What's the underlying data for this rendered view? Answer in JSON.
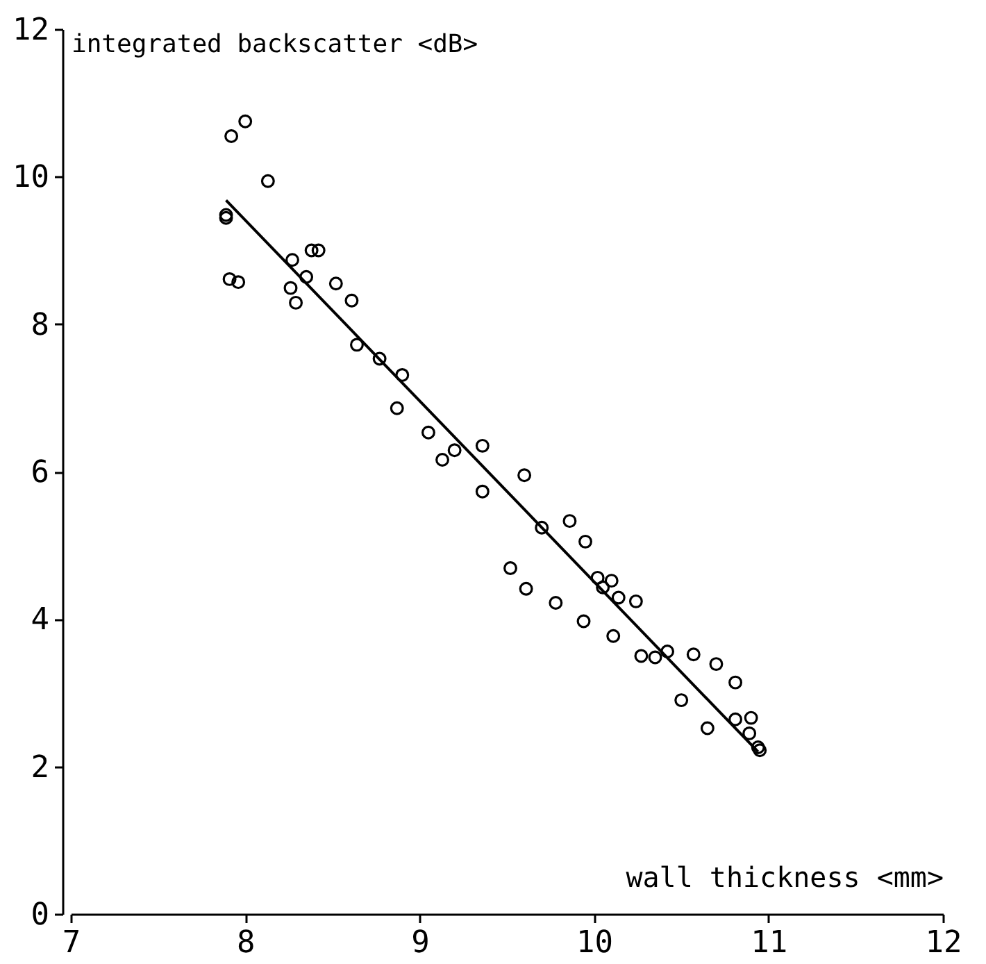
{
  "chart_data": {
    "type": "scatter",
    "xlabel": "wall thickness <mm>",
    "ylabel": "integrated backscatter <dB>",
    "xlim": [
      7,
      12
    ],
    "xticks": [
      7,
      8,
      9,
      10,
      11,
      12
    ],
    "ylim": [
      0,
      12
    ],
    "yticks": [
      0,
      2,
      4,
      6,
      8,
      10,
      12
    ],
    "grid": false,
    "marker": "circle",
    "series": [
      {
        "color": "#000000",
        "x": [
          7.89,
          7.89,
          7.92,
          8.0,
          8.13,
          7.91,
          7.96,
          8.27,
          8.26,
          8.29,
          8.35,
          8.38,
          8.42,
          8.52,
          8.61,
          8.64,
          8.77,
          8.9,
          8.87,
          9.05,
          9.13,
          9.2,
          9.36,
          9.36,
          9.6,
          9.7,
          9.86,
          9.95,
          9.52,
          9.61,
          9.78,
          9.94,
          10.02,
          10.1,
          10.05,
          10.14,
          10.24,
          10.11,
          10.27,
          10.35,
          10.42,
          10.57,
          10.7,
          10.5,
          10.65,
          10.81,
          10.81,
          10.9,
          10.89,
          10.94,
          10.95
        ],
        "values": [
          9.48,
          9.44,
          10.55,
          10.75,
          9.94,
          8.61,
          8.57,
          8.87,
          8.49,
          8.29,
          8.64,
          9.0,
          9.0,
          8.55,
          8.32,
          7.72,
          7.53,
          7.31,
          6.86,
          6.53,
          6.16,
          6.29,
          6.35,
          5.73,
          5.95,
          5.24,
          5.33,
          5.05,
          4.69,
          4.41,
          4.22,
          3.97,
          4.56,
          4.52,
          4.43,
          4.29,
          4.24,
          3.77,
          3.5,
          3.48,
          3.56,
          3.52,
          3.39,
          2.9,
          2.52,
          3.14,
          2.64,
          2.66,
          2.45,
          2.26,
          2.22
        ]
      },
      {
        "type": "line",
        "marker": "none",
        "color": "#000000",
        "x": [
          7.89,
          10.94
        ],
        "values": [
          9.68,
          2.2
        ]
      }
    ]
  }
}
